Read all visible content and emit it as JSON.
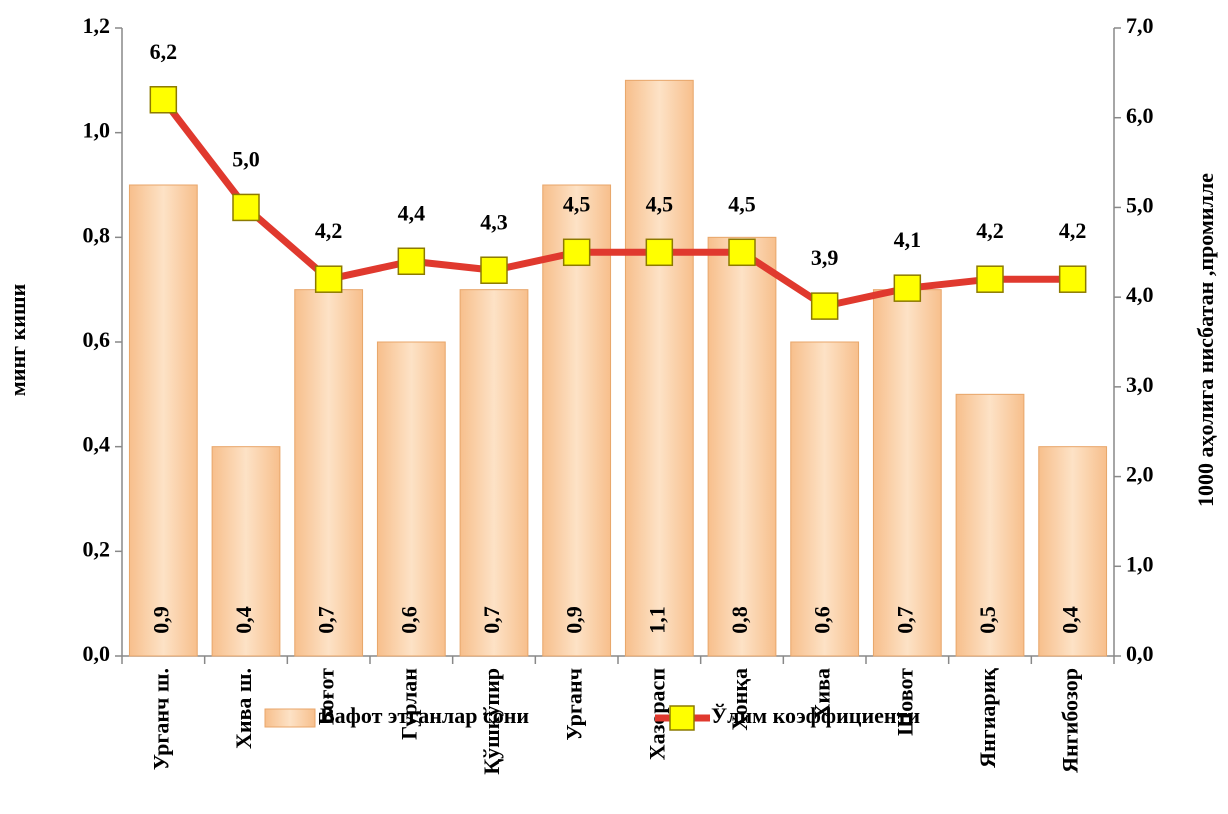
{
  "chart_data": {
    "type": "bar",
    "categories": [
      "Урганч ш.",
      "Хива ш.",
      "Боғот",
      "Гурлан",
      "Қўшкўпир",
      "Урганч",
      "Хазорасп",
      "Хонқа",
      "Хива",
      "Шовот",
      "Янгиариқ",
      "Янгибозор"
    ],
    "series": [
      {
        "name": "Вафот этганлар сони",
        "type": "bar",
        "color": "#f7bf8c",
        "values": [
          0.9,
          0.4,
          0.7,
          0.6,
          0.7,
          0.9,
          1.1,
          0.8,
          0.6,
          0.7,
          0.5,
          0.4
        ],
        "value_labels": [
          "0,9",
          "0,4",
          "0,7",
          "0,6",
          "0,7",
          "0,9",
          "1,1",
          "0,8",
          "0,6",
          "0,7",
          "0,5",
          "0,4"
        ]
      },
      {
        "name": "Ўлим коэффициенти",
        "type": "line",
        "axis": "y2",
        "color": "#e0392e",
        "marker_color": "#ffff00",
        "values": [
          6.2,
          5.0,
          4.2,
          4.4,
          4.3,
          4.5,
          4.5,
          4.5,
          3.9,
          4.1,
          4.2,
          4.2
        ],
        "value_labels": [
          "6,2",
          "5,0",
          "4,2",
          "4,4",
          "4,3",
          "4,5",
          "4,5",
          "4,5",
          "3,9",
          "4,1",
          "4,2",
          "4,2"
        ]
      }
    ],
    "ylabel": "минг киши",
    "y2label": "1000 аҳолига нисбатан ,промилле",
    "ylim": [
      0,
      1.2
    ],
    "yticks": [
      {
        "value": 0,
        "label": "0,0"
      },
      {
        "value": 0.2,
        "label": "0,2"
      },
      {
        "value": 0.4,
        "label": "0,4"
      },
      {
        "value": 0.6,
        "label": "0,6"
      },
      {
        "value": 0.8,
        "label": "0,8"
      },
      {
        "value": 1.0,
        "label": "1,0"
      },
      {
        "value": 1.2,
        "label": "1,2"
      }
    ],
    "y2lim": [
      0,
      7
    ],
    "y2ticks": [
      {
        "value": 0,
        "label": "0,0"
      },
      {
        "value": 1,
        "label": "1,0"
      },
      {
        "value": 2,
        "label": "2,0"
      },
      {
        "value": 3,
        "label": "3,0"
      },
      {
        "value": 4,
        "label": "4,0"
      },
      {
        "value": 5,
        "label": "5,0"
      },
      {
        "value": 6,
        "label": "6,0"
      },
      {
        "value": 7,
        "label": "7,0"
      }
    ],
    "legend": "bottom"
  }
}
